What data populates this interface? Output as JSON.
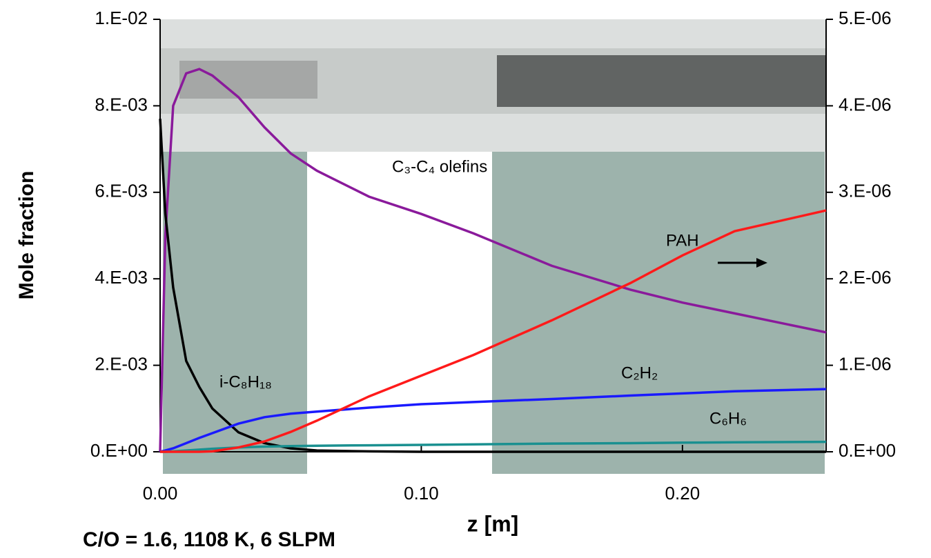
{
  "chart_data": {
    "type": "line",
    "xlabel": "z [m]",
    "ylabel": "Mole fraction",
    "note": "C/O = 1.6, 1108 K, 6 SLPM",
    "xlim": [
      0,
      0.255
    ],
    "xticks": [
      {
        "value": 0,
        "label": "0.00"
      },
      {
        "value": 0.1,
        "label": "0.10"
      },
      {
        "value": 0.2,
        "label": "0.20"
      }
    ],
    "ylim": [
      0,
      0.01
    ],
    "yticks": [
      {
        "value": 0,
        "label": "0.E+00"
      },
      {
        "value": 0.002,
        "label": "2.E-03"
      },
      {
        "value": 0.004,
        "label": "4.E-03"
      },
      {
        "value": 0.006,
        "label": "6.E-03"
      },
      {
        "value": 0.008,
        "label": "8.E-03"
      },
      {
        "value": 0.01,
        "label": "1.E-02"
      }
    ],
    "y2lim": [
      0,
      5e-06
    ],
    "y2ticks": [
      {
        "value": 0,
        "label": "0.E+00"
      },
      {
        "value": 1e-06,
        "label": "1.E-06"
      },
      {
        "value": 2e-06,
        "label": "2.E-06"
      },
      {
        "value": 3e-06,
        "label": "3.E-06"
      },
      {
        "value": 4e-06,
        "label": "4.E-06"
      },
      {
        "value": 5e-06,
        "label": "5.E-06"
      }
    ],
    "x": [
      0,
      0.002,
      0.005,
      0.01,
      0.015,
      0.02,
      0.03,
      0.04,
      0.05,
      0.06,
      0.08,
      0.1,
      0.12,
      0.15,
      0.18,
      0.2,
      0.22,
      0.255
    ],
    "series": [
      {
        "name": "C₃-C₄ olefins",
        "color": "#8a1a9b",
        "values": [
          0,
          0.005,
          0.008,
          0.00875,
          0.00885,
          0.0087,
          0.0082,
          0.0075,
          0.0069,
          0.0065,
          0.0059,
          0.0055,
          0.00505,
          0.0043,
          0.00375,
          0.00345,
          0.0032,
          0.00276
        ]
      },
      {
        "name": "i-C₈H₁₈",
        "color": "#000000",
        "values": [
          0.0077,
          0.0055,
          0.0038,
          0.0021,
          0.0015,
          0.001,
          0.00045,
          0.0002,
          8e-05,
          3e-05,
          1e-05,
          0,
          0,
          0,
          0,
          0,
          0,
          0
        ]
      },
      {
        "name": "C₂H₂",
        "color": "#1a1aff",
        "values": [
          0,
          3e-05,
          8e-05,
          0.0002,
          0.00032,
          0.00043,
          0.00065,
          0.0008,
          0.00088,
          0.00093,
          0.00102,
          0.0011,
          0.00115,
          0.00122,
          0.0013,
          0.00135,
          0.0014,
          0.00145
        ]
      },
      {
        "name": "C₆H₆",
        "color": "#1a9090",
        "values": [
          0,
          0,
          1e-05,
          3e-05,
          5e-05,
          7e-05,
          0.0001,
          0.00012,
          0.00013,
          0.00014,
          0.00015,
          0.00016,
          0.00017,
          0.00019,
          0.0002,
          0.00021,
          0.00022,
          0.00023
        ]
      },
      {
        "name": "PAH",
        "color": "#ff1a1a",
        "axis": "y2",
        "values": [
          0,
          0,
          0,
          0,
          0,
          5e-09,
          5e-08,
          1.2e-07,
          2.3e-07,
          3.6e-07,
          6.4e-07,
          8.8e-07,
          1.12e-06,
          1.52e-06,
          1.95e-06,
          2.27e-06,
          2.55e-06,
          2.79e-06
        ]
      }
    ]
  }
}
